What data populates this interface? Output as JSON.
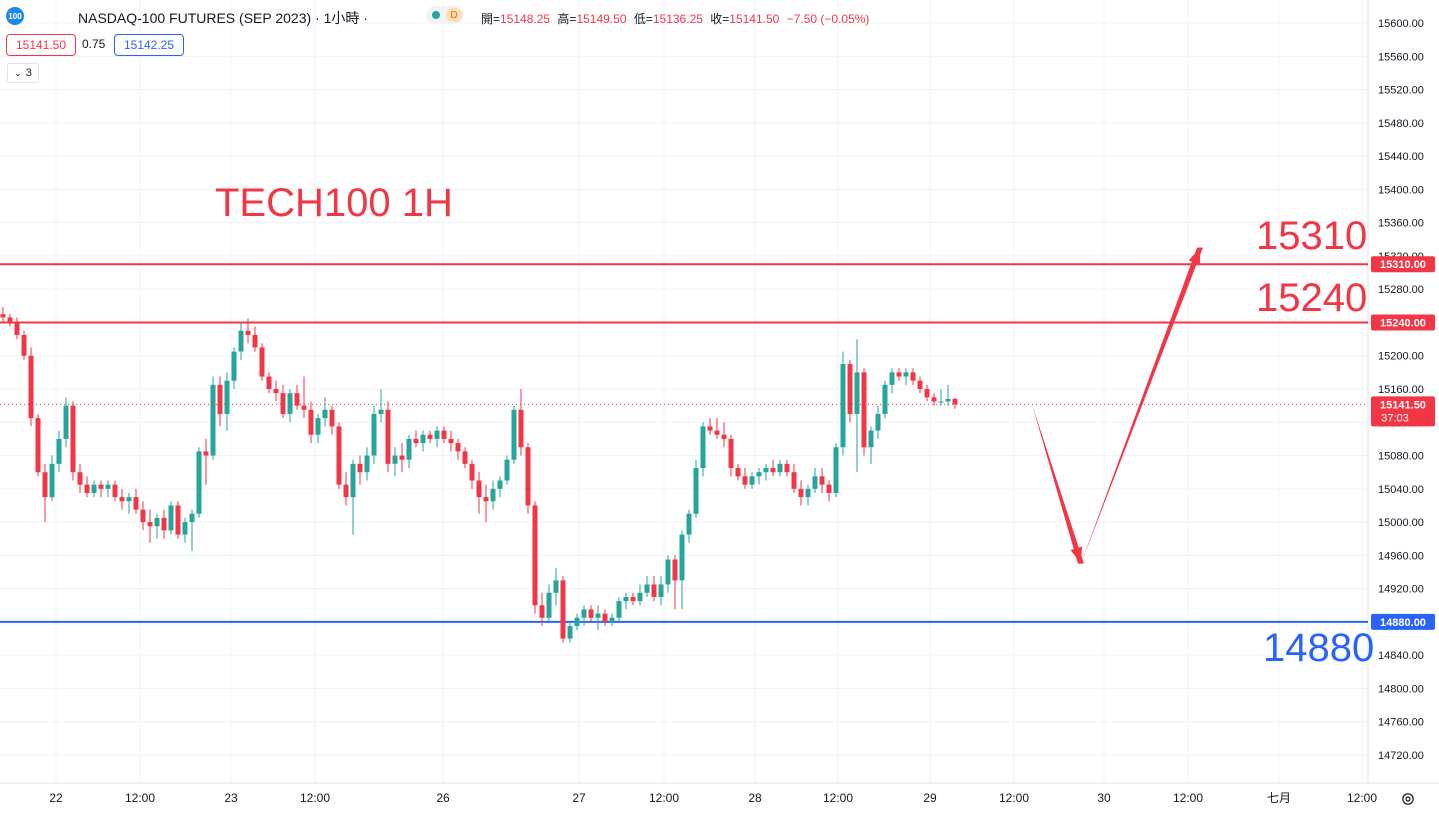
{
  "header": {
    "symbol_logo": "100",
    "symbol_title": "NASDAQ-100 FUTURES (SEP 2023) · 1小時 ·",
    "status_dot_color": "#26a69a",
    "data_badge": "D",
    "ohlc": {
      "open_label": "開=",
      "open": "15148.25",
      "high_label": "高=",
      "high": "15149.50",
      "low_label": "低=",
      "low": "15136.25",
      "close_label": "收=",
      "close": "15141.50",
      "change": "−7.50 (−0.05%)"
    },
    "sell_price": "15141.50",
    "spread": "0.75",
    "buy_price": "15142.25",
    "indicator_count": "3"
  },
  "annotations": {
    "title_text": "TECH100 1H",
    "level_upper_text": "15310",
    "level_mid_text": "15240",
    "level_low_text": "14880"
  },
  "colors": {
    "up": "#26a69a",
    "down": "#f23645",
    "resistance": "#f23645",
    "support": "#2962ff",
    "grid": "#f0f3fa",
    "axis_text": "#131722"
  },
  "chart_data": {
    "type": "candlestick",
    "title": "",
    "timeframe": "1H",
    "ylim": [
      14700,
      15620
    ],
    "y_ticks": [
      "15600.00",
      "15560.00",
      "15520.00",
      "15480.00",
      "15440.00",
      "15400.00",
      "15360.00",
      "15320.00",
      "15280.00",
      "15240.00",
      "15200.00",
      "15160.00",
      "15120.00",
      "15080.00",
      "15040.00",
      "15000.00",
      "14960.00",
      "14920.00",
      "14880.00",
      "14840.00",
      "14800.00",
      "14760.00",
      "14720.00"
    ],
    "x_ticks": [
      "22",
      "12:00",
      "23",
      "12:00",
      "26",
      "27",
      "12:00",
      "28",
      "12:00",
      "29",
      "12:00",
      "30",
      "12:00",
      "七月",
      "12:00"
    ],
    "horizontal_lines": [
      {
        "label": "15310.00",
        "value": 15310,
        "color": "#f23645"
      },
      {
        "label": "15240.00",
        "value": 15240,
        "color": "#f23645"
      },
      {
        "label": "14880.00",
        "value": 14880,
        "color": "#2962ff"
      }
    ],
    "last_price": {
      "label": "15141.50",
      "value": 15141.5,
      "countdown": "37:03"
    },
    "projection": [
      {
        "bar": 147,
        "value": 15141.5
      },
      {
        "bar": 154,
        "value": 14950
      },
      {
        "bar": 171,
        "value": 15330
      }
    ],
    "candles": [
      [
        15250,
        15258,
        15240,
        15246
      ],
      [
        15246,
        15250,
        15235,
        15240
      ],
      [
        15240,
        15246,
        15220,
        15225
      ],
      [
        15225,
        15230,
        15195,
        15200
      ],
      [
        15200,
        15210,
        15115,
        15125
      ],
      [
        15125,
        15130,
        15055,
        15060
      ],
      [
        15060,
        15070,
        15000,
        15030
      ],
      [
        15030,
        15080,
        15025,
        15070
      ],
      [
        15070,
        15110,
        15060,
        15100
      ],
      [
        15100,
        15150,
        15090,
        15140
      ],
      [
        15140,
        15145,
        15050,
        15060
      ],
      [
        15060,
        15070,
        15035,
        15045
      ],
      [
        15045,
        15055,
        15030,
        15035
      ],
      [
        15035,
        15050,
        15030,
        15045
      ],
      [
        15045,
        15050,
        15030,
        15040
      ],
      [
        15040,
        15050,
        15030,
        15045
      ],
      [
        15045,
        15050,
        15025,
        15030
      ],
      [
        15030,
        15040,
        15015,
        15025
      ],
      [
        15025,
        15035,
        15010,
        15030
      ],
      [
        15030,
        15040,
        15010,
        15015
      ],
      [
        15015,
        15025,
        14990,
        15000
      ],
      [
        15000,
        15015,
        14975,
        14995
      ],
      [
        14995,
        15010,
        14980,
        15005
      ],
      [
        15005,
        15015,
        14980,
        14990
      ],
      [
        14990,
        15025,
        14985,
        15020
      ],
      [
        15020,
        15025,
        14980,
        14985
      ],
      [
        14985,
        15005,
        14975,
        15000
      ],
      [
        15000,
        15015,
        14965,
        15010
      ],
      [
        15010,
        15090,
        15005,
        15085
      ],
      [
        15085,
        15100,
        15045,
        15080
      ],
      [
        15080,
        15175,
        15075,
        15165
      ],
      [
        15165,
        15175,
        15115,
        15130
      ],
      [
        15130,
        15180,
        15110,
        15170
      ],
      [
        15170,
        15210,
        15160,
        15205
      ],
      [
        15205,
        15240,
        15195,
        15230
      ],
      [
        15230,
        15245,
        15215,
        15225
      ],
      [
        15225,
        15235,
        15205,
        15210
      ],
      [
        15210,
        15215,
        15170,
        15175
      ],
      [
        15175,
        15180,
        15155,
        15160
      ],
      [
        15160,
        15170,
        15145,
        15155
      ],
      [
        15155,
        15165,
        15125,
        15130
      ],
      [
        15130,
        15160,
        15120,
        15155
      ],
      [
        15155,
        15165,
        15135,
        15140
      ],
      [
        15140,
        15175,
        15125,
        15135
      ],
      [
        15135,
        15145,
        15095,
        15105
      ],
      [
        15105,
        15130,
        15095,
        15125
      ],
      [
        15125,
        15150,
        15115,
        15135
      ],
      [
        15135,
        15140,
        15105,
        15115
      ],
      [
        15115,
        15120,
        15040,
        15045
      ],
      [
        15045,
        15060,
        15020,
        15030
      ],
      [
        15030,
        15075,
        14985,
        15070
      ],
      [
        15070,
        15080,
        15045,
        15060
      ],
      [
        15060,
        15090,
        15050,
        15080
      ],
      [
        15080,
        15140,
        15070,
        15130
      ],
      [
        15130,
        15160,
        15120,
        15135
      ],
      [
        15135,
        15145,
        15060,
        15070
      ],
      [
        15070,
        15090,
        15055,
        15080
      ],
      [
        15080,
        15095,
        15060,
        15075
      ],
      [
        15075,
        15105,
        15065,
        15100
      ],
      [
        15100,
        15110,
        15090,
        15095
      ],
      [
        15095,
        15110,
        15085,
        15105
      ],
      [
        15105,
        15110,
        15095,
        15100
      ],
      [
        15100,
        15115,
        15090,
        15110
      ],
      [
        15110,
        15115,
        15095,
        15100
      ],
      [
        15100,
        15110,
        15085,
        15095
      ],
      [
        15095,
        15100,
        15075,
        15085
      ],
      [
        15085,
        15090,
        15065,
        15070
      ],
      [
        15070,
        15075,
        15040,
        15050
      ],
      [
        15050,
        15060,
        15010,
        15030
      ],
      [
        15030,
        15045,
        15000,
        15025
      ],
      [
        15025,
        15050,
        15015,
        15040
      ],
      [
        15040,
        15055,
        15030,
        15050
      ],
      [
        15050,
        15080,
        15045,
        15075
      ],
      [
        15075,
        15140,
        15070,
        15135
      ],
      [
        15135,
        15160,
        15080,
        15090
      ],
      [
        15090,
        15095,
        15010,
        15020
      ],
      [
        15020,
        15025,
        14890,
        14900
      ],
      [
        14900,
        14915,
        14875,
        14885
      ],
      [
        14885,
        14925,
        14880,
        14915
      ],
      [
        14915,
        14945,
        14900,
        14930
      ],
      [
        14930,
        14935,
        14855,
        14860
      ],
      [
        14860,
        14880,
        14855,
        14875
      ],
      [
        14875,
        14890,
        14870,
        14885
      ],
      [
        14885,
        14900,
        14875,
        14895
      ],
      [
        14895,
        14900,
        14880,
        14885
      ],
      [
        14885,
        14900,
        14870,
        14890
      ],
      [
        14890,
        14895,
        14875,
        14880
      ],
      [
        14880,
        14890,
        14875,
        14885
      ],
      [
        14885,
        14910,
        14880,
        14905
      ],
      [
        14905,
        14915,
        14895,
        14910
      ],
      [
        14910,
        14915,
        14900,
        14905
      ],
      [
        14905,
        14925,
        14900,
        14915
      ],
      [
        14915,
        14935,
        14910,
        14925
      ],
      [
        14925,
        14935,
        14905,
        14910
      ],
      [
        14910,
        14935,
        14900,
        14925
      ],
      [
        14925,
        14960,
        14915,
        14955
      ],
      [
        14955,
        14960,
        14895,
        14930
      ],
      [
        14930,
        14990,
        14895,
        14985
      ],
      [
        14985,
        15015,
        14975,
        15010
      ],
      [
        15010,
        15075,
        15005,
        15065
      ],
      [
        15065,
        15120,
        15055,
        15115
      ],
      [
        15115,
        15125,
        15105,
        15110
      ],
      [
        15110,
        15125,
        15100,
        15105
      ],
      [
        15105,
        15120,
        15090,
        15100
      ],
      [
        15100,
        15105,
        15055,
        15065
      ],
      [
        15065,
        15070,
        15050,
        15055
      ],
      [
        15055,
        15065,
        15040,
        15045
      ],
      [
        15045,
        15060,
        15040,
        15055
      ],
      [
        15055,
        15065,
        15045,
        15060
      ],
      [
        15060,
        15070,
        15050,
        15065
      ],
      [
        15065,
        15075,
        15055,
        15060
      ],
      [
        15060,
        15075,
        15055,
        15070
      ],
      [
        15070,
        15075,
        15055,
        15060
      ],
      [
        15060,
        15070,
        15035,
        15040
      ],
      [
        15040,
        15050,
        15020,
        15030
      ],
      [
        15030,
        15045,
        15020,
        15040
      ],
      [
        15040,
        15065,
        15035,
        15055
      ],
      [
        15055,
        15065,
        15035,
        15045
      ],
      [
        15045,
        15050,
        15025,
        15035
      ],
      [
        15035,
        15095,
        15030,
        15090
      ],
      [
        15090,
        15205,
        15080,
        15190
      ],
      [
        15190,
        15195,
        15120,
        15130
      ],
      [
        15130,
        15220,
        15060,
        15180
      ],
      [
        15180,
        15185,
        15080,
        15090
      ],
      [
        15090,
        15115,
        15070,
        15110
      ],
      [
        15110,
        15140,
        15100,
        15130
      ],
      [
        15130,
        15170,
        15125,
        15165
      ],
      [
        15165,
        15185,
        15155,
        15180
      ],
      [
        15180,
        15185,
        15170,
        15175
      ],
      [
        15175,
        15185,
        15165,
        15180
      ],
      [
        15180,
        15185,
        15165,
        15170
      ],
      [
        15170,
        15175,
        15155,
        15160
      ],
      [
        15160,
        15165,
        15145,
        15150
      ],
      [
        15150,
        15155,
        15140,
        15145
      ],
      [
        15145,
        15160,
        15140,
        15145
      ],
      [
        15145,
        15165,
        15140,
        15148
      ],
      [
        15148.25,
        15149.5,
        15136.25,
        15141.5
      ]
    ]
  }
}
